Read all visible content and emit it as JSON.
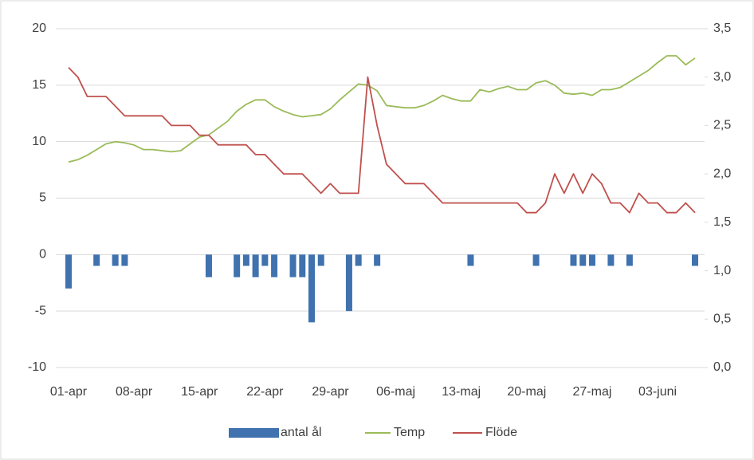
{
  "chart_data": {
    "type": "combo",
    "categories": [
      "01-apr",
      null,
      null,
      null,
      null,
      null,
      null,
      "08-apr",
      null,
      null,
      null,
      null,
      null,
      null,
      "15-apr",
      null,
      null,
      null,
      null,
      null,
      null,
      "22-apr",
      null,
      null,
      null,
      null,
      null,
      null,
      "29-apr",
      null,
      null,
      null,
      null,
      null,
      null,
      "06-maj",
      null,
      null,
      null,
      null,
      null,
      null,
      "13-maj",
      null,
      null,
      null,
      null,
      null,
      null,
      "20-maj",
      null,
      null,
      null,
      null,
      null,
      null,
      "27-maj",
      null,
      null,
      null,
      null,
      null,
      null,
      "03-juni",
      null,
      null,
      null,
      null
    ],
    "series": [
      {
        "name": "antal ål",
        "type": "bar",
        "color": "#3f72ae",
        "axis": "y",
        "values": [
          -3,
          0,
          0,
          -1,
          0,
          -1,
          -1,
          0,
          0,
          0,
          0,
          0,
          0,
          0,
          0,
          -2,
          0,
          0,
          -2,
          -1,
          -2,
          -1,
          -2,
          0,
          -2,
          -2,
          -6,
          -1,
          0,
          0,
          -5,
          -1,
          0,
          -1,
          0,
          0,
          0,
          0,
          0,
          0,
          0,
          0,
          0,
          -1,
          0,
          0,
          0,
          0,
          0,
          0,
          -1,
          0,
          0,
          0,
          -1,
          -1,
          -1,
          0,
          -1,
          0,
          -1,
          0,
          0,
          0,
          0,
          0,
          0,
          -1
        ]
      },
      {
        "name": "Temp",
        "type": "line",
        "color": "#9bbb59",
        "axis": "y",
        "values": [
          8.2,
          8.4,
          8.8,
          9.3,
          9.8,
          10.0,
          9.9,
          9.7,
          9.3,
          9.3,
          9.2,
          9.1,
          9.2,
          9.8,
          10.4,
          10.6,
          11.2,
          11.8,
          12.7,
          13.3,
          13.7,
          13.7,
          13.1,
          12.7,
          12.4,
          12.2,
          12.3,
          12.4,
          12.9,
          13.7,
          14.4,
          15.1,
          15.0,
          14.5,
          13.2,
          13.1,
          13.0,
          13.0,
          13.2,
          13.6,
          14.1,
          13.8,
          13.6,
          13.6,
          14.6,
          14.4,
          14.7,
          14.9,
          14.6,
          14.6,
          15.2,
          15.4,
          15.0,
          14.3,
          14.2,
          14.3,
          14.1,
          14.6,
          14.6,
          14.8,
          15.3,
          15.8,
          16.3,
          17.0,
          17.6,
          17.6,
          16.8,
          17.4
        ]
      },
      {
        "name": "Flöde",
        "type": "line",
        "color": "#c0504d",
        "axis": "y2",
        "values": [
          3.1,
          3.0,
          2.8,
          2.8,
          2.8,
          2.7,
          2.6,
          2.6,
          2.6,
          2.6,
          2.6,
          2.5,
          2.5,
          2.5,
          2.4,
          2.4,
          2.3,
          2.3,
          2.3,
          2.3,
          2.2,
          2.2,
          2.1,
          2.0,
          2.0,
          2.0,
          1.9,
          1.8,
          1.9,
          1.8,
          1.8,
          1.8,
          3.0,
          2.5,
          2.1,
          2.0,
          1.9,
          1.9,
          1.9,
          1.8,
          1.7,
          1.7,
          1.7,
          1.7,
          1.7,
          1.7,
          1.7,
          1.7,
          1.7,
          1.6,
          1.6,
          1.7,
          2.0,
          1.8,
          2.0,
          1.8,
          2.0,
          1.9,
          1.7,
          1.7,
          1.6,
          1.8,
          1.7,
          1.7,
          1.6,
          1.6,
          1.7,
          1.6
        ]
      }
    ],
    "ylim": [
      -10,
      20
    ],
    "yticks": [
      -10,
      -5,
      0,
      5,
      10,
      15,
      20
    ],
    "y2lim": [
      0,
      3.5
    ],
    "y2ticks": [
      {
        "value": 0,
        "label": "0,0"
      },
      {
        "value": 0.5,
        "label": "0,5"
      },
      {
        "value": 1,
        "label": "1,0"
      },
      {
        "value": 1.5,
        "label": "1,5"
      },
      {
        "value": 2,
        "label": "2,0"
      },
      {
        "value": 2.5,
        "label": "2,5"
      },
      {
        "value": 3,
        "label": "3,0"
      },
      {
        "value": 3.5,
        "label": "3,5"
      }
    ],
    "grid": true,
    "legend": "bottom"
  }
}
